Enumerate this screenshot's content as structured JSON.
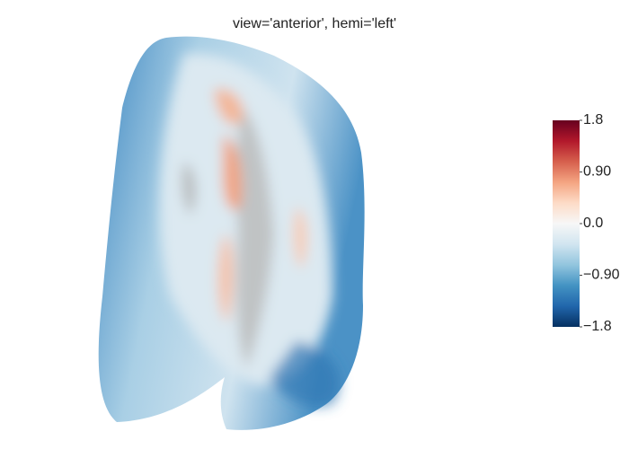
{
  "chart_data": {
    "type": "surface",
    "title": "view='anterior', hemi='left'",
    "colorscale": [
      "#053061",
      "#2166ac",
      "#4393c3",
      "#92c5de",
      "#d1e5f0",
      "#f7f7f7",
      "#fddbc7",
      "#f4a582",
      "#d6604d",
      "#b2182b",
      "#67001f"
    ],
    "clim": [
      -1.8,
      1.8
    ],
    "cticks": [
      1.8,
      {
        "value": 0.9,
        "label": "0.90"
      },
      {
        "value": 0,
        "label": "0.0"
      },
      {
        "value": -0.9,
        "label": "−0.90"
      },
      {
        "value": -1.8,
        "label": "−1.8"
      }
    ]
  }
}
